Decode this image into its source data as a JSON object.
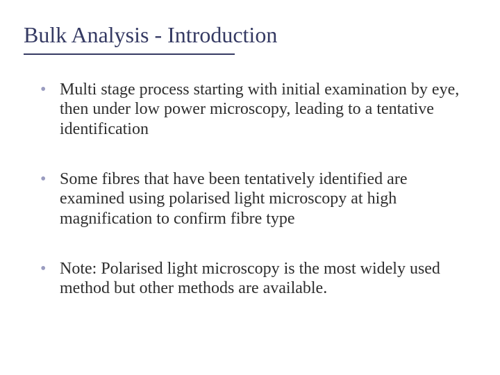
{
  "colors": {
    "heading": "#353a63",
    "underline": "#353a63",
    "bullet_marker": "#9a9cc0",
    "body_text": "#2e2e2e",
    "background": "#ffffff"
  },
  "title": "Bulk Analysis - Introduction",
  "bullets": [
    "Multi stage process starting with initial examination by eye, then under low power microscopy, leading to a tentative identification",
    "Some fibres that have been tentatively identified are examined using polarised light microscopy at high magnification to confirm fibre type",
    "Note: Polarised light microscopy is the most widely used method but other methods are available."
  ]
}
